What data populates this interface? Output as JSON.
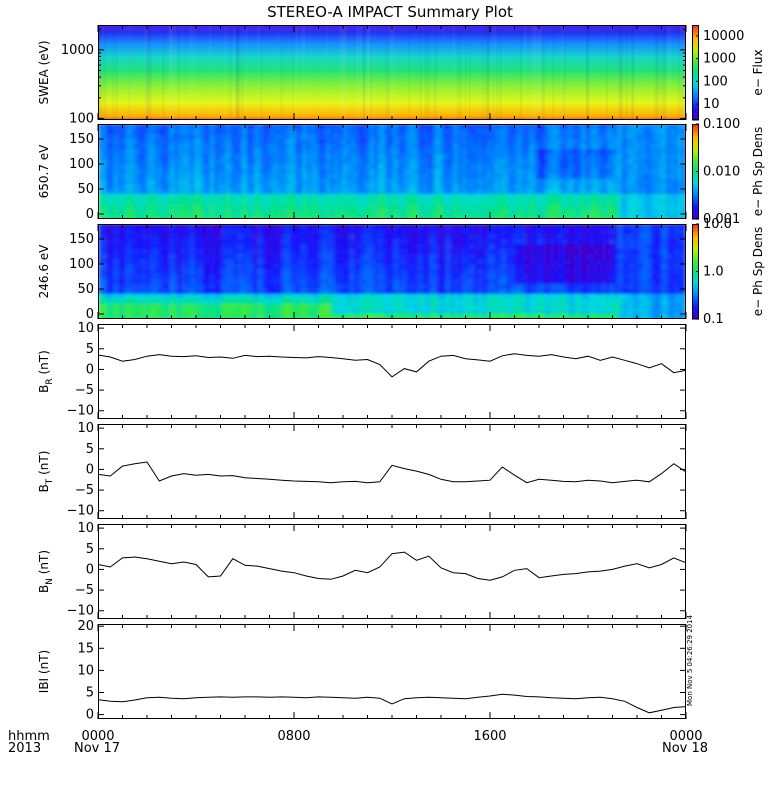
{
  "title": "STEREO-A IMPACT Summary Plot",
  "chart_data": [
    {
      "type": "heatmap",
      "name": "swea",
      "ylabel": "SWEA (eV)",
      "yscale": "log",
      "ylim": [
        95,
        2300
      ],
      "yticks": [
        {
          "v": 100,
          "t": "100"
        },
        {
          "v": 1000,
          "t": "1000"
        }
      ],
      "colorbar": {
        "label": "e− Flux",
        "scale": "log",
        "range": [
          2,
          30000
        ],
        "ticks": [
          {
            "v": 10,
            "t": "10"
          },
          {
            "v": 100,
            "t": "100"
          },
          {
            "v": 1000,
            "t": "1000"
          },
          {
            "v": 10000,
            "t": "10000"
          }
        ]
      },
      "stops": [
        {
          "f": 0.0,
          "c": "#f05a18"
        },
        {
          "f": 0.04,
          "c": "#ffb000"
        },
        {
          "f": 0.18,
          "c": "#e6f51a"
        },
        {
          "f": 0.38,
          "c": "#7ef03a"
        },
        {
          "f": 0.52,
          "c": "#22e27a"
        },
        {
          "f": 0.66,
          "c": "#17d6c8"
        },
        {
          "f": 0.8,
          "c": "#1790ff"
        },
        {
          "f": 0.92,
          "c": "#2333f2"
        },
        {
          "f": 1.0,
          "c": "#5a1ee6"
        }
      ]
    },
    {
      "type": "heatmap",
      "name": "pad650",
      "ylabel": "650.7 eV",
      "ylim": [
        -10,
        180
      ],
      "yticks": [
        {
          "v": 0,
          "t": "0"
        },
        {
          "v": 50,
          "t": "50"
        },
        {
          "v": 100,
          "t": "100"
        },
        {
          "v": 150,
          "t": "150"
        }
      ],
      "colorbar": {
        "label": "e− Ph Sp Dens",
        "scale": "log",
        "range": [
          0.001,
          0.1
        ],
        "ticks": [
          {
            "v": 0.001,
            "t": "0.001"
          },
          {
            "v": 0.01,
            "t": "0.010"
          },
          {
            "v": 0.1,
            "t": "0.100"
          }
        ]
      }
    },
    {
      "type": "heatmap",
      "name": "pad246",
      "ylabel": "246.6 eV",
      "ylim": [
        -10,
        180
      ],
      "yticks": [
        {
          "v": 0,
          "t": "0"
        },
        {
          "v": 50,
          "t": "50"
        },
        {
          "v": 100,
          "t": "100"
        },
        {
          "v": 150,
          "t": "150"
        }
      ],
      "colorbar": {
        "label": "e− Ph Sp Dens",
        "scale": "log",
        "range": [
          0.1,
          10
        ],
        "ticks": [
          {
            "v": 0.1,
            "t": "0.1"
          },
          {
            "v": 1,
            "t": "1.0"
          },
          {
            "v": 10,
            "t": "10.0"
          }
        ]
      }
    },
    {
      "type": "line",
      "name": "br",
      "ylabel": [
        "B",
        "R",
        " (nT)"
      ],
      "ylim": [
        -12,
        11
      ],
      "yticks": [
        {
          "v": -10,
          "t": "−10"
        },
        {
          "v": -5,
          "t": "−5"
        },
        {
          "v": 0,
          "t": "0"
        },
        {
          "v": 5,
          "t": "5"
        },
        {
          "v": 10,
          "t": "10"
        }
      ],
      "x": [
        0,
        0.5,
        1,
        1.5,
        2,
        2.5,
        3,
        3.5,
        4,
        4.5,
        5,
        5.5,
        6,
        6.5,
        7,
        7.5,
        8,
        8.5,
        9,
        9.5,
        10,
        10.5,
        11,
        11.5,
        12,
        12.5,
        13,
        13.5,
        14,
        14.5,
        15,
        15.5,
        16,
        16.5,
        17,
        17.5,
        18,
        18.5,
        19,
        19.5,
        20,
        20.5,
        21,
        21.5,
        22,
        22.5,
        23,
        23.5,
        24
      ],
      "y": [
        3.5,
        3.0,
        2.0,
        2.4,
        3.2,
        3.6,
        3.2,
        3.1,
        3.3,
        2.9,
        3.0,
        2.7,
        3.4,
        3.1,
        3.2,
        3.0,
        2.9,
        2.8,
        3.1,
        2.9,
        2.6,
        2.2,
        2.4,
        1.2,
        -1.8,
        0.2,
        -0.6,
        2.0,
        3.2,
        3.4,
        2.6,
        2.3,
        2.0,
        3.3,
        3.8,
        3.4,
        3.2,
        3.6,
        3.0,
        2.6,
        3.2,
        2.2,
        3.0,
        2.2,
        1.4,
        0.4,
        1.4,
        -0.8,
        -0.2
      ]
    },
    {
      "type": "line",
      "name": "bt",
      "ylabel": [
        "B",
        "T",
        " (nT)"
      ],
      "ylim": [
        -12,
        11
      ],
      "yticks": [
        {
          "v": -10,
          "t": "−10"
        },
        {
          "v": -5,
          "t": "−5"
        },
        {
          "v": 0,
          "t": "0"
        },
        {
          "v": 5,
          "t": "5"
        },
        {
          "v": 10,
          "t": "10"
        }
      ],
      "x": [
        0,
        0.5,
        1,
        1.5,
        2,
        2.5,
        3,
        3.5,
        4,
        4.5,
        5,
        5.5,
        6,
        6.5,
        7,
        7.5,
        8,
        8.5,
        9,
        9.5,
        10,
        10.5,
        11,
        11.5,
        12,
        12.5,
        13,
        13.5,
        14,
        14.5,
        15,
        15.5,
        16,
        16.5,
        17,
        17.5,
        18,
        18.5,
        19,
        19.5,
        20,
        20.5,
        21,
        21.5,
        22,
        22.5,
        23,
        23.5,
        24
      ],
      "y": [
        -1.2,
        -1.6,
        0.8,
        1.4,
        1.8,
        -2.8,
        -1.6,
        -1.0,
        -1.4,
        -1.2,
        -1.6,
        -1.5,
        -2.0,
        -2.2,
        -2.4,
        -2.6,
        -2.8,
        -2.9,
        -3.0,
        -3.2,
        -3.0,
        -2.9,
        -3.2,
        -3.0,
        1.0,
        0.2,
        -0.4,
        -1.2,
        -2.4,
        -3.0,
        -3.0,
        -2.8,
        -2.6,
        0.6,
        -1.4,
        -3.2,
        -2.4,
        -2.6,
        -2.9,
        -3.0,
        -2.6,
        -2.8,
        -3.2,
        -2.9,
        -2.6,
        -3.0,
        -1.0,
        1.4,
        -0.6
      ]
    },
    {
      "type": "line",
      "name": "bn",
      "ylabel": [
        "B",
        "N",
        " (nT)"
      ],
      "ylim": [
        -12,
        11
      ],
      "yticks": [
        {
          "v": -10,
          "t": "−10"
        },
        {
          "v": -5,
          "t": "−5"
        },
        {
          "v": 0,
          "t": "0"
        },
        {
          "v": 5,
          "t": "5"
        },
        {
          "v": 10,
          "t": "10"
        }
      ],
      "x": [
        0,
        0.5,
        1,
        1.5,
        2,
        2.5,
        3,
        3.5,
        4,
        4.5,
        5,
        5.5,
        6,
        6.5,
        7,
        7.5,
        8,
        8.5,
        9,
        9.5,
        10,
        10.5,
        11,
        11.5,
        12,
        12.5,
        13,
        13.5,
        14,
        14.5,
        15,
        15.5,
        16,
        16.5,
        17,
        17.5,
        18,
        18.5,
        19,
        19.5,
        20,
        20.5,
        21,
        21.5,
        22,
        22.5,
        23,
        23.5,
        24
      ],
      "y": [
        1.2,
        0.6,
        2.8,
        3.0,
        2.6,
        2.0,
        1.4,
        1.8,
        1.2,
        -1.8,
        -1.6,
        2.6,
        1.0,
        0.8,
        0.2,
        -0.4,
        -0.8,
        -1.6,
        -2.2,
        -2.4,
        -1.6,
        -0.2,
        -0.8,
        0.6,
        3.8,
        4.2,
        2.2,
        3.2,
        0.4,
        -0.8,
        -1.0,
        -2.2,
        -2.6,
        -1.8,
        -0.2,
        0.2,
        -2.0,
        -1.6,
        -1.2,
        -1.0,
        -0.6,
        -0.4,
        0.0,
        0.8,
        1.4,
        0.4,
        1.2,
        2.8,
        1.6
      ]
    },
    {
      "type": "line",
      "name": "bmag",
      "ylabel": [
        "IBI (nT)"
      ],
      "ylim": [
        -1,
        20.5
      ],
      "yticks": [
        {
          "v": 0,
          "t": "0"
        },
        {
          "v": 5,
          "t": "5"
        },
        {
          "v": 10,
          "t": "10"
        },
        {
          "v": 15,
          "t": "15"
        },
        {
          "v": 20,
          "t": "20"
        }
      ],
      "x": [
        0,
        0.5,
        1,
        1.5,
        2,
        2.5,
        3,
        3.5,
        4,
        4.5,
        5,
        5.5,
        6,
        6.5,
        7,
        7.5,
        8,
        8.5,
        9,
        9.5,
        10,
        10.5,
        11,
        11.5,
        12,
        12.5,
        13,
        13.5,
        14,
        14.5,
        15,
        15.5,
        16,
        16.5,
        17,
        17.5,
        18,
        18.5,
        19,
        19.5,
        20,
        20.5,
        21,
        21.5,
        22,
        22.5,
        23,
        23.5,
        24
      ],
      "y": [
        3.4,
        3.0,
        2.9,
        3.3,
        3.8,
        3.9,
        3.7,
        3.6,
        3.8,
        3.9,
        4.0,
        3.9,
        4.0,
        4.0,
        3.9,
        4.0,
        3.9,
        3.8,
        4.0,
        3.9,
        3.8,
        3.7,
        3.9,
        3.7,
        2.4,
        3.6,
        3.8,
        3.9,
        3.8,
        3.7,
        3.6,
        3.9,
        4.2,
        4.6,
        4.4,
        4.1,
        4.0,
        3.8,
        3.7,
        3.6,
        3.8,
        3.9,
        3.6,
        3.0,
        1.6,
        0.4,
        1.0,
        1.6,
        1.8
      ]
    }
  ],
  "x_axis": {
    "ticks": [
      {
        "h": 0,
        "t": "0000"
      },
      {
        "h": 8,
        "t": "0800"
      },
      {
        "h": 16,
        "t": "1600"
      },
      {
        "h": 24,
        "t": "0000"
      }
    ],
    "row_label_1": "hhmm",
    "row_label_2": "2013",
    "date_start": "Nov 17",
    "date_end": "Nov 18"
  },
  "stamp": "Mon Nov  5 04:26:29 2014"
}
